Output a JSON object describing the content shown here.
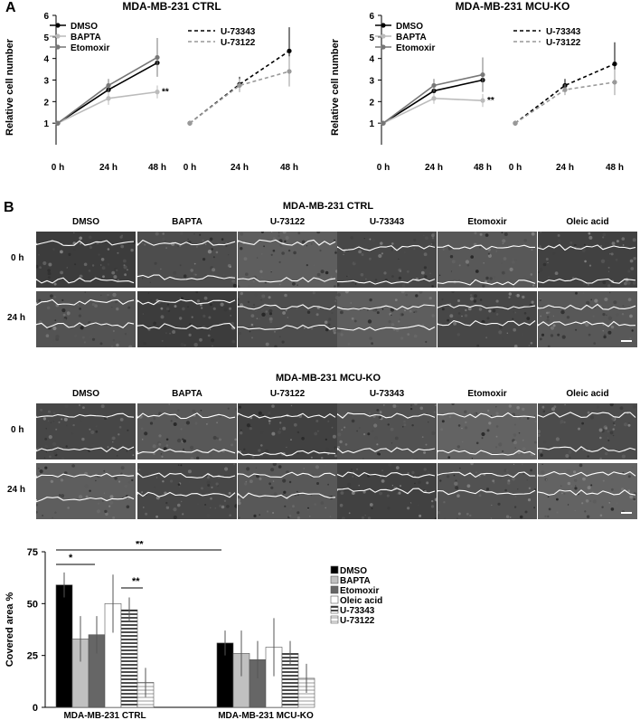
{
  "panelA": {
    "label": "A",
    "plots": [
      {
        "title": "MDA-MB-231 CTRL",
        "ylabel": "Relative cell number",
        "yticks": [
          "1",
          "2",
          "3",
          "4",
          "5",
          "6"
        ],
        "xticks": [
          "0 h",
          "24 h",
          "48 h",
          "0 h",
          "24 h",
          "48 h"
        ],
        "legend_left": [
          "DMSO",
          "BAPTA",
          "Etomoxir"
        ],
        "legend_right": [
          "U-73343",
          "U-73122"
        ],
        "sig": "**",
        "chart_data": {
          "type": "line",
          "ylim": [
            0,
            6
          ],
          "x": [
            "0 h",
            "24 h",
            "48 h"
          ],
          "series_left": [
            {
              "name": "DMSO",
              "values": [
                1,
                2.55,
                3.8
              ],
              "err": [
                0,
                0.3,
                0.6
              ],
              "color": "#000000",
              "dash": false
            },
            {
              "name": "BAPTA",
              "values": [
                1,
                2.15,
                2.45
              ],
              "err": [
                0,
                0.3,
                0.3
              ],
              "color": "#bbbbbb",
              "dash": false
            },
            {
              "name": "Etomoxir",
              "values": [
                1,
                2.75,
                4.05
              ],
              "err": [
                0,
                0.3,
                0.9
              ],
              "color": "#777777",
              "dash": false
            }
          ],
          "series_right": [
            {
              "name": "U-73343",
              "values": [
                1,
                2.8,
                4.35
              ],
              "err": [
                0,
                0.35,
                1.1
              ],
              "color": "#000000",
              "dash": true
            },
            {
              "name": "U-73122",
              "values": [
                1,
                2.75,
                3.4
              ],
              "err": [
                0,
                0.3,
                0.7
              ],
              "color": "#999999",
              "dash": true
            }
          ]
        }
      },
      {
        "title": "MDA-MB-231 MCU-KO",
        "ylabel": "Relative cell number",
        "yticks": [
          "1",
          "2",
          "3",
          "4",
          "5",
          "6"
        ],
        "xticks": [
          "0 h",
          "24 h",
          "48 h",
          "0 h",
          "24 h",
          "48 h"
        ],
        "legend_left": [
          "DMSO",
          "BAPTA",
          "Etomoxir"
        ],
        "legend_right": [
          "U-73343",
          "U-73122"
        ],
        "sig": "**",
        "chart_data": {
          "type": "line",
          "ylim": [
            0,
            6
          ],
          "x": [
            "0 h",
            "24 h",
            "48 h"
          ],
          "series_left": [
            {
              "name": "DMSO",
              "values": [
                1,
                2.5,
                3.0
              ],
              "err": [
                0,
                0.3,
                0.5
              ],
              "color": "#000000",
              "dash": false
            },
            {
              "name": "BAPTA",
              "values": [
                1,
                2.15,
                2.05
              ],
              "err": [
                0,
                0.25,
                0.3
              ],
              "color": "#bbbbbb",
              "dash": false
            },
            {
              "name": "Etomoxir",
              "values": [
                1,
                2.75,
                3.25
              ],
              "err": [
                0,
                0.3,
                0.8
              ],
              "color": "#777777",
              "dash": false
            }
          ],
          "series_right": [
            {
              "name": "U-73343",
              "values": [
                1,
                2.75,
                3.75
              ],
              "err": [
                0,
                0.3,
                1.0
              ],
              "color": "#000000",
              "dash": true
            },
            {
              "name": "U-73122",
              "values": [
                1,
                2.55,
                2.9
              ],
              "err": [
                0,
                0.25,
                0.6
              ],
              "color": "#999999",
              "dash": true
            }
          ]
        }
      }
    ]
  },
  "panelB": {
    "label": "B",
    "sections": [
      {
        "title": "MDA-MB-231 CTRL",
        "columns": [
          "DMSO",
          "BAPTA",
          "U-73122",
          "U-73343",
          "Etomoxir",
          "Oleic acid"
        ],
        "rows": [
          "0 h",
          "24 h"
        ]
      },
      {
        "title": "MDA-MB-231 MCU-KO",
        "columns": [
          "DMSO",
          "BAPTA",
          "U-73122",
          "U-73343",
          "Etomoxir",
          "Oleic acid"
        ],
        "rows": [
          "0 h",
          "24 h"
        ]
      }
    ]
  },
  "barChart": {
    "ylabel": "Covered area %",
    "yticks": [
      "0",
      "25",
      "50",
      "75"
    ],
    "sig_marks": [
      "*",
      "**",
      "**"
    ],
    "chart_data": {
      "type": "bar",
      "ylim": [
        0,
        75
      ],
      "categories": [
        "MDA-MB-231  CTRL",
        "MDA-MB-231  MCU-KO"
      ],
      "series": [
        {
          "name": "DMSO",
          "values": [
            59,
            31
          ],
          "err": [
            6,
            6
          ],
          "fill": "#000000",
          "pattern": "solid"
        },
        {
          "name": "BAPTA",
          "values": [
            33,
            26
          ],
          "err": [
            11,
            11
          ],
          "fill": "#c0c0c0",
          "pattern": "solid"
        },
        {
          "name": "Etomoxir",
          "values": [
            35,
            23
          ],
          "err": [
            9,
            9
          ],
          "fill": "#666666",
          "pattern": "solid"
        },
        {
          "name": "Oleic acid",
          "values": [
            50,
            29
          ],
          "err": [
            14,
            14
          ],
          "fill": "#ffffff",
          "pattern": "solid"
        },
        {
          "name": "U-73343",
          "values": [
            47,
            26
          ],
          "err": [
            6,
            6
          ],
          "fill": "#ffffff",
          "pattern": "hstripe-dark"
        },
        {
          "name": "U-73122",
          "values": [
            12,
            14
          ],
          "err": [
            7,
            7
          ],
          "fill": "#ffffff",
          "pattern": "hstripe-light"
        }
      ]
    }
  }
}
